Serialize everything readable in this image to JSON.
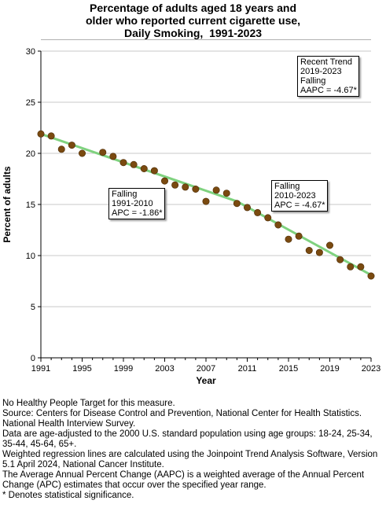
{
  "chart_data": {
    "type": "line",
    "title_lines": [
      "Percentage of adults aged 18 years and",
      "older who reported current cigarette use,",
      "Daily Smoking,  1991-2023"
    ],
    "xlabel": "Year",
    "ylabel": "Percent of adults",
    "xlim": [
      1991,
      2023
    ],
    "ylim": [
      0,
      30
    ],
    "x_ticks": [
      1991,
      1995,
      1999,
      2003,
      2007,
      2011,
      2015,
      2019,
      2023
    ],
    "x_tick_labels": [
      "1991",
      "1995",
      "1999",
      "2003",
      "2007",
      "2011",
      "2015",
      "2019",
      "2023"
    ],
    "y_ticks": [
      0,
      5,
      10,
      15,
      20,
      25,
      30
    ],
    "y_tick_labels": [
      "0",
      "5",
      "10",
      "15",
      "20",
      "25",
      "30"
    ],
    "grid": "horizontal",
    "series": [
      {
        "kind": "scatter",
        "color": "#7a4a10",
        "x": [
          1991,
          1992,
          1993,
          1994,
          1995,
          1997,
          1998,
          1999,
          2000,
          2001,
          2002,
          2003,
          2004,
          2005,
          2006,
          2007,
          2008,
          2009,
          2010,
          2011,
          2012,
          2013,
          2014,
          2015,
          2016,
          2017,
          2018,
          2019,
          2020,
          2021,
          2022,
          2023
        ],
        "y": [
          21.9,
          21.7,
          20.4,
          20.8,
          20.0,
          20.1,
          19.7,
          19.1,
          18.9,
          18.5,
          18.3,
          17.3,
          16.9,
          16.7,
          16.5,
          15.3,
          16.4,
          16.1,
          15.1,
          14.7,
          14.2,
          13.7,
          13.0,
          11.6,
          11.9,
          10.5,
          10.3,
          11.0,
          9.6,
          8.9,
          8.9,
          8.0
        ]
      },
      {
        "kind": "trend",
        "color": "#7fd27f",
        "x": [
          1991,
          2010,
          2023
        ],
        "y": [
          21.9,
          15.3,
          8.1
        ]
      }
    ],
    "annotations": [
      {
        "id": "seg1",
        "lines": [
          "Falling",
          "1991-2010",
          "APC = -1.86*"
        ]
      },
      {
        "id": "seg2",
        "lines": [
          "Falling",
          "2010-2023",
          "APC = -4.67*"
        ]
      },
      {
        "id": "recent",
        "lines": [
          "Recent Trend",
          "2019-2023",
          "Falling",
          "AAPC = -4.67*"
        ]
      }
    ]
  },
  "footnotes": [
    "No Healthy People Target for this measure.",
    "Source: Centers for Disease Control and Prevention, National Center for Health Statistics. National Health Interview Survey.",
    "Data are age-adjusted to the 2000 U.S. standard population using age groups: 18-24, 25-34, 35-44, 45-64, 65+.",
    "Weighted regression lines are calculated using the Joinpoint Trend Analysis Software, Version 5.1 April 2024, National Cancer Institute.",
    "The Average Annual Percent Change (AAPC) is a weighted average of the Annual Percent Change (APC) estimates that occur over the specified year range.",
    "* Denotes statistical significance."
  ]
}
